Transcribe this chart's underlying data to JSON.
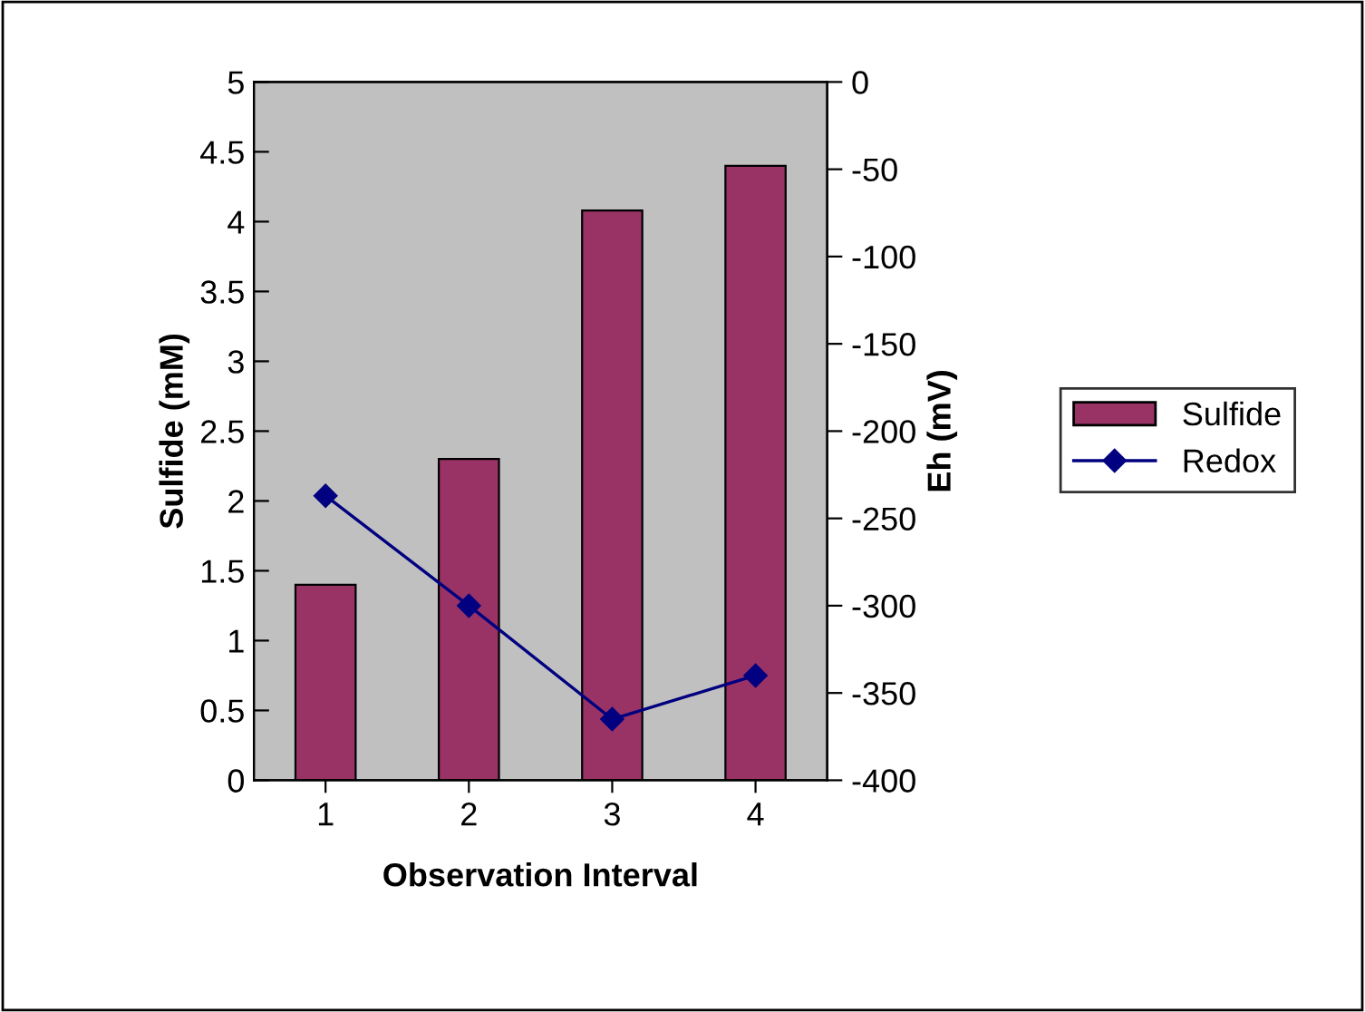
{
  "chart_data": {
    "type": "bar",
    "xlabel": "Observation Interval",
    "ylabel": "Sulfide (mM)",
    "y2label": "Eh (mV)",
    "categories": [
      "1",
      "2",
      "3",
      "4"
    ],
    "series": [
      {
        "name": "Sulfide",
        "color": "#993366",
        "values": [
          1.4,
          2.3,
          4.08,
          4.4
        ]
      },
      {
        "name": "Redox",
        "color": "#000080",
        "type": "line",
        "axis": "y2",
        "marker": "diamond",
        "values": [
          -237,
          -300,
          -365,
          -340
        ]
      }
    ],
    "ylim": [
      0,
      5
    ],
    "yticks": [
      0,
      0.5,
      1,
      1.5,
      2,
      2.5,
      3,
      3.5,
      4,
      4.5,
      5
    ],
    "y2lim": [
      -400,
      0
    ],
    "y2ticks": [
      -400,
      -350,
      -300,
      -250,
      -200,
      -150,
      -100,
      -50,
      0
    ],
    "grid": false,
    "legend": "right"
  }
}
